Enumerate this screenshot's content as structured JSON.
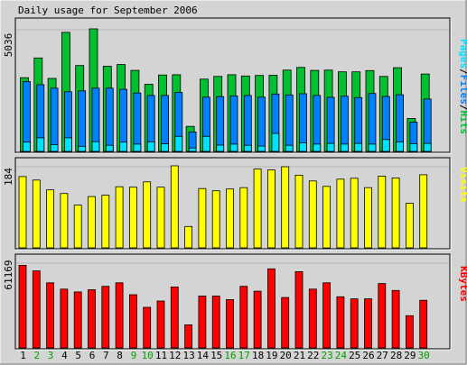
{
  "page": {
    "background": "#d4d4d4"
  },
  "chart_data": {
    "type": "bar",
    "title": "Daily usage for September 2006",
    "categories": [
      "1",
      "2",
      "3",
      "4",
      "5",
      "6",
      "7",
      "8",
      "9",
      "10",
      "11",
      "12",
      "13",
      "14",
      "15",
      "16",
      "17",
      "18",
      "19",
      "20",
      "21",
      "22",
      "23",
      "24",
      "25",
      "26",
      "27",
      "28",
      "29",
      "30"
    ],
    "weekend_days": [
      "2",
      "3",
      "9",
      "10",
      "16",
      "17",
      "23",
      "24",
      "30"
    ],
    "colors": {
      "hits": "#00c030",
      "files": "#0080ff",
      "pages": "#00e0ff",
      "visits": "#ffff00",
      "kbytes": "#ff0000",
      "weekday_label": "#000000",
      "weekend_label": "#00a000"
    },
    "panels": [
      {
        "id": "hits_files_pages",
        "ylabel": "Pages/Files/Hits",
        "ylabel_parts": [
          {
            "text": "Pages",
            "color": "#00e0ff"
          },
          {
            "text": "/",
            "color": "#000000"
          },
          {
            "text": "Files",
            "color": "#0080ff"
          },
          {
            "text": "/",
            "color": "#000000"
          },
          {
            "text": "Hits",
            "color": "#00c030"
          }
        ],
        "max_label": "5036",
        "ymax": 5036,
        "series": [
          {
            "name": "Hits",
            "color": "#00c030",
            "values": [
              3030,
              3840,
              3000,
              4890,
              3530,
              5036,
              3500,
              3570,
              3330,
              2760,
              3140,
              3150,
              1030,
              2970,
              3080,
              3150,
              3100,
              3120,
              3130,
              3340,
              3450,
              3330,
              3340,
              3270,
              3270,
              3320,
              3080,
              3440,
              1350,
              3180
            ]
          },
          {
            "name": "Files",
            "color": "#0080ff",
            "values": [
              2870,
              2740,
              2600,
              2450,
              2490,
              2600,
              2600,
              2550,
              2400,
              2300,
              2300,
              2420,
              800,
              2230,
              2250,
              2280,
              2300,
              2230,
              2360,
              2320,
              2370,
              2300,
              2220,
              2270,
              2210,
              2380,
              2260,
              2330,
              1200,
              2150
            ]
          },
          {
            "name": "Pages",
            "color": "#00e0ff",
            "values": [
              380,
              560,
              280,
              560,
              210,
              400,
              250,
              380,
              300,
              390,
              310,
              620,
              140,
              620,
              260,
              300,
              250,
              220,
              740,
              250,
              350,
              300,
              330,
              300,
              330,
              300,
              490,
              390,
              320,
              330
            ]
          }
        ]
      },
      {
        "id": "visits",
        "ylabel": "Visits",
        "max_label": "184",
        "ymax": 184,
        "series": [
          {
            "name": "Visits",
            "color": "#ffff00",
            "values": [
              160,
              152,
              130,
              122,
              96,
              115,
              118,
              137,
              136,
              148,
              136,
              184,
              48,
              133,
              128,
              132,
              135,
              177,
              175,
              182,
              163,
              150,
              138,
              154,
              156,
              135,
              161,
              157,
              100,
              164
            ]
          }
        ]
      },
      {
        "id": "kbytes",
        "ylabel": "KBytes",
        "max_label": "61169",
        "ymax": 61169,
        "series": [
          {
            "name": "KBytes",
            "color": "#ff0000",
            "values": [
              59000,
              55000,
              46500,
              42000,
              40000,
              41500,
              44000,
              46500,
              38000,
              29000,
              33500,
              43500,
              16500,
              37000,
              37000,
              34500,
              44000,
              40500,
              56500,
              36000,
              54500,
              42000,
              46500,
              36500,
              35000,
              35000,
              46000,
              41000,
              23000,
              34000
            ]
          }
        ]
      }
    ]
  }
}
